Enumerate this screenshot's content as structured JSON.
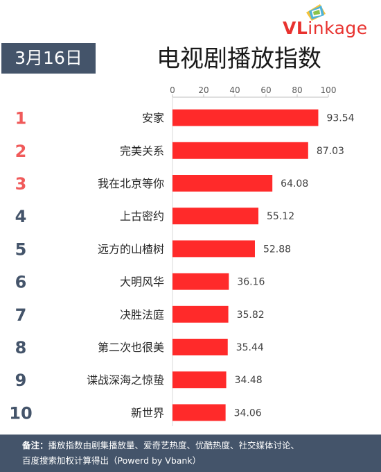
{
  "date": "3月16日",
  "title": "电视剧播放指数",
  "logo": {
    "v": "VL",
    "rest": "inkage"
  },
  "colors": {
    "bar": "#ff2a2a",
    "rank_top": "#f05a5a",
    "rank_other": "#44546a",
    "banner": "#44546a"
  },
  "chart_data": {
    "type": "bar",
    "orientation": "horizontal",
    "categories": [
      "安家",
      "完美关系",
      "我在北京等你",
      "上古密约",
      "远方的山楂树",
      "大明风华",
      "决胜法庭",
      "第二次也很美",
      "谍战深海之惊蛰",
      "新世界"
    ],
    "ranks": [
      "1",
      "2",
      "3",
      "4",
      "5",
      "6",
      "7",
      "8",
      "9",
      "10"
    ],
    "values": [
      93.54,
      87.03,
      64.08,
      55.12,
      52.88,
      36.16,
      35.82,
      35.44,
      34.48,
      34.06
    ],
    "value_labels": [
      "93.54",
      "87.03",
      "64.08",
      "55.12",
      "52.88",
      "36.16",
      "35.82",
      "35.44",
      "34.48",
      "34.06"
    ],
    "xlim": [
      0,
      100
    ],
    "xticks": [
      "0",
      "20",
      "40",
      "60",
      "80",
      "100"
    ],
    "xtick_values": [
      0,
      20,
      40,
      60,
      80,
      100
    ],
    "axis_position": "top",
    "grid": false
  },
  "footer": {
    "label": "备注：",
    "line1": "播放指数由剧集播放量、爱奇艺热度、优酷热度、社交媒体讨论、",
    "line2": "百度搜索加权计算得出（Powerd by Vbank）"
  }
}
